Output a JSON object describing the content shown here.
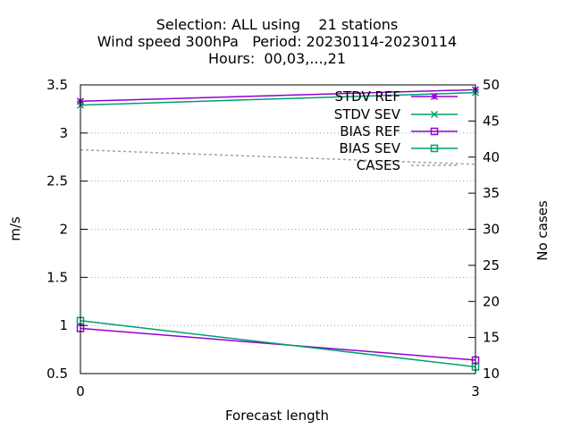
{
  "chart_data": {
    "type": "line",
    "title_lines": [
      "Selection: ALL using    21 stations",
      "Wind speed 300hPa   Period: 20230114-20230114",
      "Hours:  00,03,...,21"
    ],
    "xlabel": "Forecast length",
    "ylabel": "m/s",
    "y2label": "No cases",
    "x": [
      0,
      3
    ],
    "xlim": [
      0,
      3
    ],
    "ylim": [
      0.5,
      3.5
    ],
    "y2lim": [
      10,
      50
    ],
    "x_ticks": [
      "0",
      "3"
    ],
    "y_ticks": [
      "0.5",
      "1",
      "1.5",
      "2",
      "2.5",
      "3",
      "3.5"
    ],
    "y2_ticks": [
      "10",
      "15",
      "20",
      "25",
      "30",
      "35",
      "40",
      "45",
      "50"
    ],
    "grid": true,
    "legend_position": "top-right",
    "series": [
      {
        "name": "STDV REF",
        "axis": "y",
        "marker": "star",
        "color": "#9400d3",
        "values": [
          3.33,
          3.45
        ]
      },
      {
        "name": "STDV SEV",
        "axis": "y",
        "marker": "x",
        "color": "#009e73",
        "values": [
          3.29,
          3.42
        ]
      },
      {
        "name": "BIAS REF",
        "axis": "y",
        "marker": "square",
        "color": "#9400d3",
        "values": [
          0.97,
          0.64
        ]
      },
      {
        "name": "BIAS SEV",
        "axis": "y",
        "marker": "square",
        "color": "#009e73",
        "values": [
          1.05,
          0.57
        ]
      },
      {
        "name": "CASES",
        "axis": "y2",
        "marker": "none",
        "color": "#a0a0a0",
        "dashed": true,
        "values": [
          41,
          39
        ]
      }
    ]
  }
}
